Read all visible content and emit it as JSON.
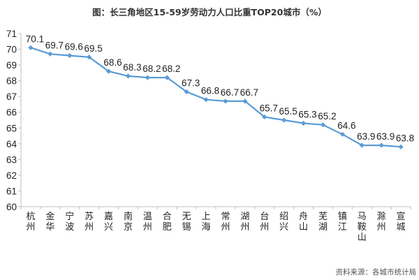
{
  "chart_data": {
    "type": "line",
    "title": "图：长三角地区15-59岁劳动力人口比重TOP20城市（%）",
    "categories": [
      "杭州",
      "金华",
      "宁波",
      "苏州",
      "嘉兴",
      "南京",
      "温州",
      "合肥",
      "无锡",
      "上海",
      "常州",
      "湖州",
      "台州",
      "绍兴",
      "舟山",
      "芜湖",
      "镇江",
      "马鞍山",
      "滁州",
      "宣城"
    ],
    "values": [
      70.1,
      69.7,
      69.6,
      69.5,
      68.6,
      68.3,
      68.2,
      68.2,
      67.3,
      66.8,
      66.7,
      66.7,
      65.7,
      65.5,
      65.3,
      65.2,
      64.6,
      63.9,
      63.9,
      63.8
    ],
    "value_labels": [
      "70.1",
      "69.7",
      "69.6",
      "69.5",
      "68.6",
      "68.3",
      "68.2",
      "68.2",
      "67.3",
      "66.8",
      "66.7",
      "66.7",
      "65.7",
      "65.5",
      "65.3",
      "65.2",
      "64.6",
      "63.9",
      "63.9",
      "63.8"
    ],
    "ylim": [
      60,
      71
    ],
    "yticks": [
      60,
      61,
      62,
      63,
      64,
      65,
      66,
      67,
      68,
      69,
      70,
      71
    ],
    "xlabel": "",
    "ylabel": "",
    "grid": false,
    "marker": "diamond",
    "line_color": "#5b9bd5",
    "source": "资料来源：各城市统计局"
  }
}
